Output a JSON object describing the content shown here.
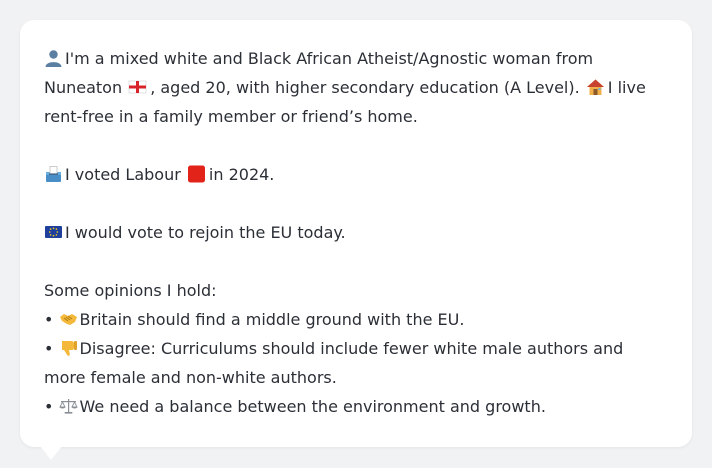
{
  "profile": {
    "line1_text": "I'm a mixed white and Black African Atheist/Agnostic woman from",
    "line2_pre": "Nuneaton",
    "line2_mid": ", aged 20, with higher secondary education (A Level).",
    "line2_post": "I live",
    "line3_text": "rent-free in a family member or friend’s home."
  },
  "vote": {
    "pre": "I voted Labour",
    "post": "in 2024."
  },
  "eu": {
    "text": "I would vote to rejoin the EU today."
  },
  "opinions": {
    "heading": "Some opinions I hold:",
    "bullet": "•",
    "items": [
      {
        "icon": "handshake-icon",
        "text": "Britain should find a middle ground with the EU."
      },
      {
        "icon": "thumbs-down-icon",
        "text_line1": "Disagree: Curriculums should include fewer white male authors and",
        "text_line2": "more female and non-white authors."
      },
      {
        "icon": "balance-scale-icon",
        "text": "We need a balance between the environment and growth."
      }
    ]
  },
  "colors": {
    "labour_red": "#e2231a",
    "eu_blue": "#1f3f9c",
    "england_red": "#d8232a"
  }
}
